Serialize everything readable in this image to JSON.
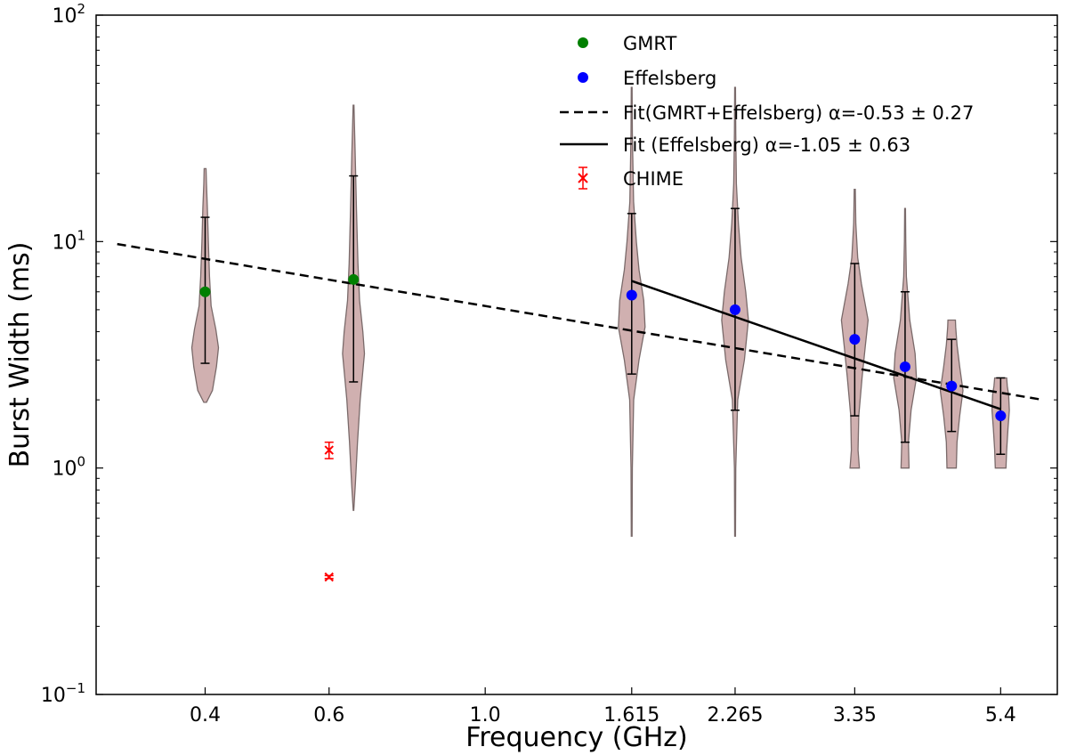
{
  "chart_data": {
    "type": "scatter",
    "title": "",
    "xlabel": "Frequency (GHz)",
    "ylabel": "Burst Width (ms)",
    "x_scale": "log",
    "y_scale": "log",
    "xlim": [
      0.28,
      6.5
    ],
    "ylim": [
      0.1,
      100
    ],
    "grid": false,
    "legend_position": "top-right",
    "x_ticks": [
      {
        "value": 0.4,
        "label": "0.4"
      },
      {
        "value": 0.6,
        "label": "0.6"
      },
      {
        "value": 1.0,
        "label": "1.0"
      },
      {
        "value": 1.615,
        "label": "1.615"
      },
      {
        "value": 2.265,
        "label": "2.265"
      },
      {
        "value": 3.35,
        "label": "3.35"
      },
      {
        "value": 5.4,
        "label": "5.4"
      }
    ],
    "y_ticks": [
      {
        "value": 0.1,
        "base": "10",
        "exp": "−1"
      },
      {
        "value": 1,
        "base": "10",
        "exp": "0"
      },
      {
        "value": 10,
        "base": "10",
        "exp": "1"
      },
      {
        "value": 100,
        "base": "10",
        "exp": "2"
      }
    ],
    "colors": {
      "gmrt": "#008000",
      "effelsberg": "#0000ff",
      "chime": "#ff0000",
      "violin_fill": "#bc8f8f",
      "violin_edge": "#7a6a6a",
      "fit": "#000000"
    },
    "series": [
      {
        "name": "GMRT",
        "kind": "marker",
        "points": [
          {
            "x": 0.4,
            "y": 6.0,
            "err_low": 2.9,
            "err_high": 12.8
          },
          {
            "x": 0.65,
            "y": 6.8,
            "err_low": 2.4,
            "err_high": 19.5
          }
        ]
      },
      {
        "name": "Effelsberg",
        "kind": "marker",
        "points": [
          {
            "x": 1.615,
            "y": 5.8,
            "err_low": 2.6,
            "err_high": 13.3
          },
          {
            "x": 2.265,
            "y": 5.0,
            "err_low": 1.8,
            "err_high": 14.0
          },
          {
            "x": 3.35,
            "y": 3.7,
            "err_low": 1.7,
            "err_high": 8.0
          },
          {
            "x": 3.95,
            "y": 2.8,
            "err_low": 1.3,
            "err_high": 6.0
          },
          {
            "x": 4.6,
            "y": 2.3,
            "err_low": 1.45,
            "err_high": 3.7
          },
          {
            "x": 5.4,
            "y": 1.7,
            "err_low": 1.15,
            "err_high": 2.5
          }
        ]
      },
      {
        "name": "Fit(GMRT+Effelsberg) α=-0.53 ± 0.27",
        "kind": "dashed-line",
        "x": [
          0.3,
          6.2
        ],
        "y": [
          9.75,
          2.0
        ]
      },
      {
        "name": "Fit (Effelsberg) α=-1.05 ± 0.63",
        "kind": "solid-line",
        "x": [
          1.615,
          5.4
        ],
        "y": [
          6.7,
          1.82
        ]
      },
      {
        "name": "CHIME",
        "kind": "errorbar-x",
        "points": [
          {
            "x": 0.6,
            "y": 1.2,
            "err_low": 1.1,
            "err_high": 1.3
          },
          {
            "x": 0.6,
            "y": 0.33,
            "err_low": 0.325,
            "err_high": 0.335
          }
        ]
      }
    ],
    "violins": [
      {
        "x": 0.4,
        "ymin": 1.95,
        "ymax": 21,
        "profile": [
          [
            1.95,
            0.1
          ],
          [
            2.2,
            0.55
          ],
          [
            2.8,
            0.85
          ],
          [
            3.4,
            1.0
          ],
          [
            4.1,
            0.8
          ],
          [
            5.2,
            0.45
          ],
          [
            7.0,
            0.33
          ],
          [
            10,
            0.24
          ],
          [
            14,
            0.17
          ],
          [
            18,
            0.1
          ],
          [
            21,
            0.07
          ]
        ]
      },
      {
        "x": 0.65,
        "ymin": 0.65,
        "ymax": 40,
        "profile": [
          [
            0.65,
            0.02
          ],
          [
            0.85,
            0.14
          ],
          [
            1.3,
            0.3
          ],
          [
            2.0,
            0.5
          ],
          [
            3.2,
            0.82
          ],
          [
            4.0,
            0.7
          ],
          [
            5.5,
            0.45
          ],
          [
            8,
            0.33
          ],
          [
            14,
            0.22
          ],
          [
            25,
            0.12
          ],
          [
            40,
            0.03
          ]
        ]
      },
      {
        "x": 1.615,
        "ymin": 0.5,
        "ymax": 48,
        "profile": [
          [
            0.5,
            0.03
          ],
          [
            1.0,
            0.05
          ],
          [
            2.0,
            0.15
          ],
          [
            3.0,
            0.55
          ],
          [
            4.2,
            1.0
          ],
          [
            5.5,
            0.9
          ],
          [
            7.5,
            0.55
          ],
          [
            10,
            0.35
          ],
          [
            15,
            0.14
          ],
          [
            30,
            0.05
          ],
          [
            48,
            0.03
          ]
        ]
      },
      {
        "x": 2.265,
        "ymin": 0.5,
        "ymax": 48,
        "profile": [
          [
            0.5,
            0.03
          ],
          [
            1.0,
            0.05
          ],
          [
            2.0,
            0.2
          ],
          [
            3.0,
            0.7
          ],
          [
            4.5,
            1.0
          ],
          [
            6.0,
            0.8
          ],
          [
            8.5,
            0.45
          ],
          [
            12,
            0.25
          ],
          [
            18,
            0.1
          ],
          [
            30,
            0.05
          ],
          [
            48,
            0.03
          ]
        ]
      },
      {
        "x": 3.35,
        "ymin": 1.0,
        "ymax": 17,
        "profile": [
          [
            1.0,
            0.35
          ],
          [
            1.2,
            0.25
          ],
          [
            1.7,
            0.3
          ],
          [
            2.5,
            0.55
          ],
          [
            3.5,
            0.8
          ],
          [
            4.5,
            1.0
          ],
          [
            6.5,
            0.5
          ],
          [
            8.5,
            0.22
          ],
          [
            12,
            0.08
          ],
          [
            17,
            0.04
          ]
        ]
      },
      {
        "x": 3.95,
        "ymin": 1.0,
        "ymax": 14,
        "profile": [
          [
            1.0,
            0.3
          ],
          [
            1.3,
            0.25
          ],
          [
            1.8,
            0.45
          ],
          [
            2.5,
            0.85
          ],
          [
            3.2,
            0.75
          ],
          [
            4.5,
            0.35
          ],
          [
            7,
            0.1
          ],
          [
            10,
            0.05
          ],
          [
            14,
            0.03
          ]
        ]
      },
      {
        "x": 4.6,
        "ymin": 1.0,
        "ymax": 4.5,
        "profile": [
          [
            1.0,
            0.35
          ],
          [
            1.3,
            0.4
          ],
          [
            1.7,
            0.6
          ],
          [
            2.2,
            0.85
          ],
          [
            2.8,
            0.6
          ],
          [
            3.5,
            0.4
          ],
          [
            4.2,
            0.3
          ],
          [
            4.5,
            0.28
          ]
        ]
      },
      {
        "x": 5.4,
        "ymin": 1.0,
        "ymax": 2.5,
        "profile": [
          [
            1.0,
            0.4
          ],
          [
            1.2,
            0.45
          ],
          [
            1.5,
            0.55
          ],
          [
            1.8,
            0.65
          ],
          [
            2.1,
            0.6
          ],
          [
            2.3,
            0.5
          ],
          [
            2.5,
            0.45
          ]
        ]
      }
    ]
  }
}
